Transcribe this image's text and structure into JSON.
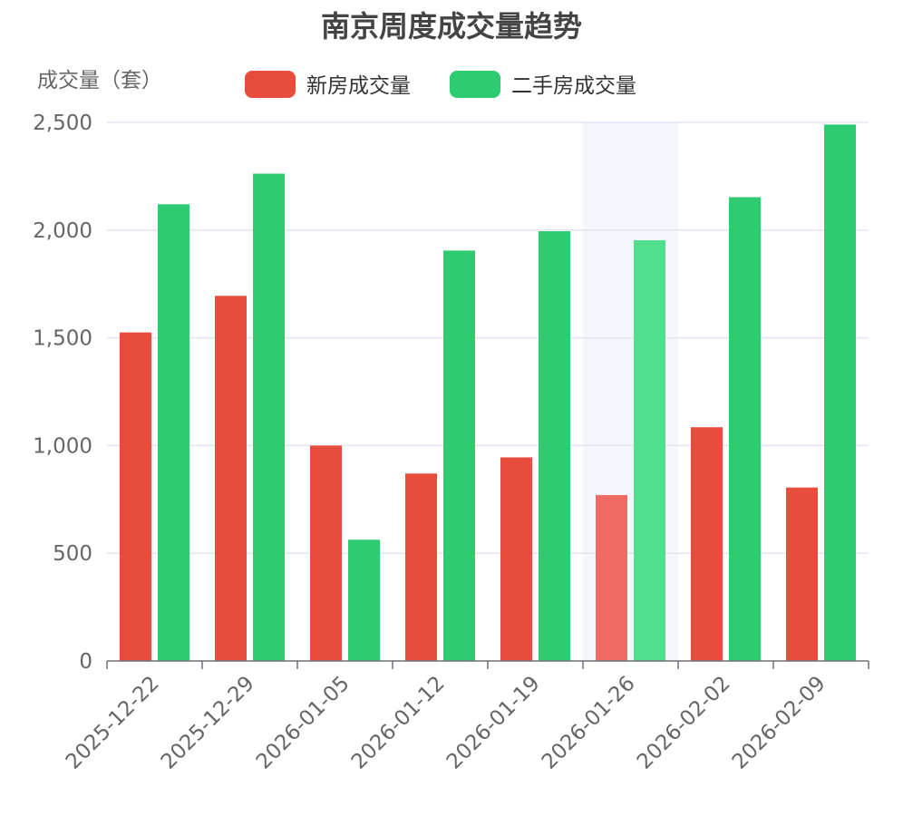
{
  "colors": {
    "new_house": "#e74c3c",
    "second_hand": "#2ecc71",
    "new_house_highlight": "#f26b63",
    "second_hand_highlight": "#52de8c",
    "gridline": "#e0e6f1",
    "axis": "#6e7079",
    "highlight_band": "#f3f6fb"
  },
  "chart_data": {
    "type": "bar",
    "title": "南京周度成交量趋势",
    "ylabel": "成交量（套）",
    "xlabel": "",
    "categories": [
      "2025-12-22",
      "2025-12-29",
      "2026-01-05",
      "2026-01-12",
      "2026-01-19",
      "2026-01-26",
      "2026-02-02",
      "2026-02-09"
    ],
    "series": [
      {
        "name": "新房成交量",
        "color_key": "new_house",
        "values": [
          1525,
          1695,
          1000,
          870,
          945,
          770,
          1085,
          805
        ]
      },
      {
        "name": "二手房成交量",
        "color_key": "second_hand",
        "values": [
          2120,
          2262,
          563,
          1905,
          1995,
          1953,
          2153,
          2490
        ]
      }
    ],
    "ylim": [
      0,
      2500
    ],
    "yticks": [
      0,
      500,
      1000,
      1500,
      2000,
      2500
    ],
    "ytick_labels": [
      "0",
      "500",
      "1,000",
      "1,500",
      "2,000",
      "2,500"
    ],
    "grid": true,
    "legend_position": "top-center",
    "highlighted_category": "2026-01-26"
  }
}
